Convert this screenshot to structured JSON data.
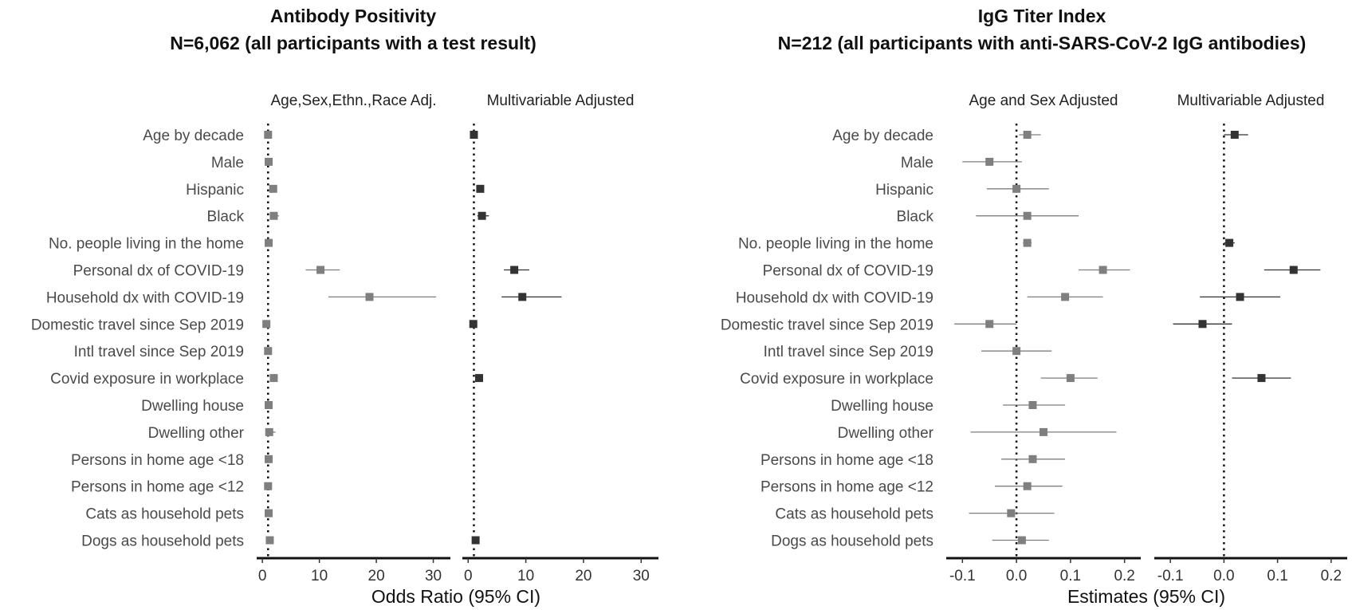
{
  "chart_data": [
    {
      "type": "forest",
      "title": "Antibody Positivity",
      "subtitle": "N=6,062 (all participants with a test result)",
      "xlabel": "Odds Ratio (95% CI)",
      "xlim": [
        -1,
        33
      ],
      "xticks": [
        0,
        10,
        20,
        30
      ],
      "reference_line": 1,
      "categories": [
        "Age by decade",
        "Male",
        "Hispanic",
        "Black",
        "No. people living in the home",
        "Personal dx of COVID-19",
        "Household dx with COVID-19",
        "Domestic travel since Sep 2019",
        "Intl travel since Sep 2019",
        "Covid exposure in workplace",
        "Dwelling house",
        "Dwelling other",
        "Persons in home age <18",
        "Persons in home age <12",
        "Cats as household pets",
        "Dogs as household pets"
      ],
      "facets": [
        {
          "name": "Age,Sex,Ethn.,Race Adj.",
          "color": "#7f7f7f",
          "estimates": [
            1.0,
            1.1,
            1.9,
            2.0,
            1.1,
            10.2,
            18.8,
            0.7,
            1.0,
            2.0,
            1.1,
            1.2,
            1.1,
            1.0,
            1.1,
            1.3
          ],
          "ci_low": [
            0.9,
            0.9,
            1.4,
            1.4,
            1.0,
            7.6,
            11.6,
            0.5,
            0.7,
            1.5,
            0.8,
            0.7,
            0.8,
            0.7,
            0.8,
            0.9
          ],
          "ci_high": [
            1.1,
            1.3,
            2.5,
            2.9,
            1.2,
            13.6,
            30.5,
            1.0,
            1.4,
            2.7,
            1.5,
            2.3,
            1.5,
            1.4,
            1.5,
            1.9
          ]
        },
        {
          "name": "Multivariable Adjusted",
          "color": "#333333",
          "estimates": [
            1.0,
            null,
            2.1,
            2.4,
            null,
            8.0,
            9.4,
            0.9,
            null,
            1.9,
            null,
            null,
            null,
            null,
            null,
            1.3
          ],
          "ci_low": [
            0.9,
            null,
            1.6,
            1.6,
            null,
            6.2,
            5.8,
            0.6,
            null,
            1.4,
            null,
            null,
            null,
            null,
            null,
            0.9
          ],
          "ci_high": [
            1.1,
            null,
            2.8,
            3.6,
            null,
            10.6,
            16.2,
            1.3,
            null,
            2.6,
            null,
            null,
            null,
            null,
            null,
            1.8
          ]
        }
      ]
    },
    {
      "type": "forest",
      "title": "IgG Titer Index",
      "subtitle": "N=212 (all participants with anti-SARS-CoV-2 IgG antibodies)",
      "xlabel": "Estimates (95% CI)",
      "xlim": [
        -0.13,
        0.23
      ],
      "xticks": [
        -0.1,
        0.0,
        0.1,
        0.2
      ],
      "xtick_labels": [
        "-0.1",
        "0.0",
        "0.1",
        "0.2"
      ],
      "reference_line": 0,
      "categories": [
        "Age by decade",
        "Male",
        "Hispanic",
        "Black",
        "No. people living in the home",
        "Personal dx of COVID-19",
        "Household dx with COVID-19",
        "Domestic travel since Sep 2019",
        "Intl travel since Sep 2019",
        "Covid exposure in workplace",
        "Dwelling house",
        "Dwelling other",
        "Persons in home age <18",
        "Persons in home age <12",
        "Cats as household pets",
        "Dogs as household pets"
      ],
      "facets": [
        {
          "name": "Age and Sex Adjusted",
          "color": "#7f7f7f",
          "estimates": [
            0.02,
            -0.05,
            0.0,
            0.02,
            0.02,
            0.16,
            0.09,
            -0.05,
            0.0,
            0.1,
            0.03,
            0.05,
            0.03,
            0.02,
            -0.01,
            0.01
          ],
          "ci_low": [
            0.005,
            -0.1,
            -0.055,
            -0.075,
            0.012,
            0.115,
            0.02,
            -0.115,
            -0.065,
            0.045,
            -0.025,
            -0.085,
            -0.028,
            -0.04,
            -0.088,
            -0.045
          ],
          "ci_high": [
            0.045,
            0.01,
            0.06,
            0.115,
            0.028,
            0.21,
            0.16,
            0.0,
            0.065,
            0.15,
            0.09,
            0.185,
            0.09,
            0.085,
            0.07,
            0.06
          ]
        },
        {
          "name": "Multivariable Adjusted",
          "color": "#333333",
          "estimates": [
            0.02,
            null,
            null,
            null,
            0.01,
            0.13,
            0.03,
            -0.04,
            null,
            0.07,
            null,
            null,
            null,
            null,
            null,
            null
          ],
          "ci_low": [
            0.0,
            null,
            null,
            null,
            0.0,
            0.075,
            -0.045,
            -0.095,
            null,
            0.015,
            null,
            null,
            null,
            null,
            null,
            null
          ],
          "ci_high": [
            0.045,
            null,
            null,
            null,
            0.02,
            0.18,
            0.105,
            0.015,
            null,
            0.125,
            null,
            null,
            null,
            null,
            null,
            null
          ]
        }
      ]
    }
  ]
}
